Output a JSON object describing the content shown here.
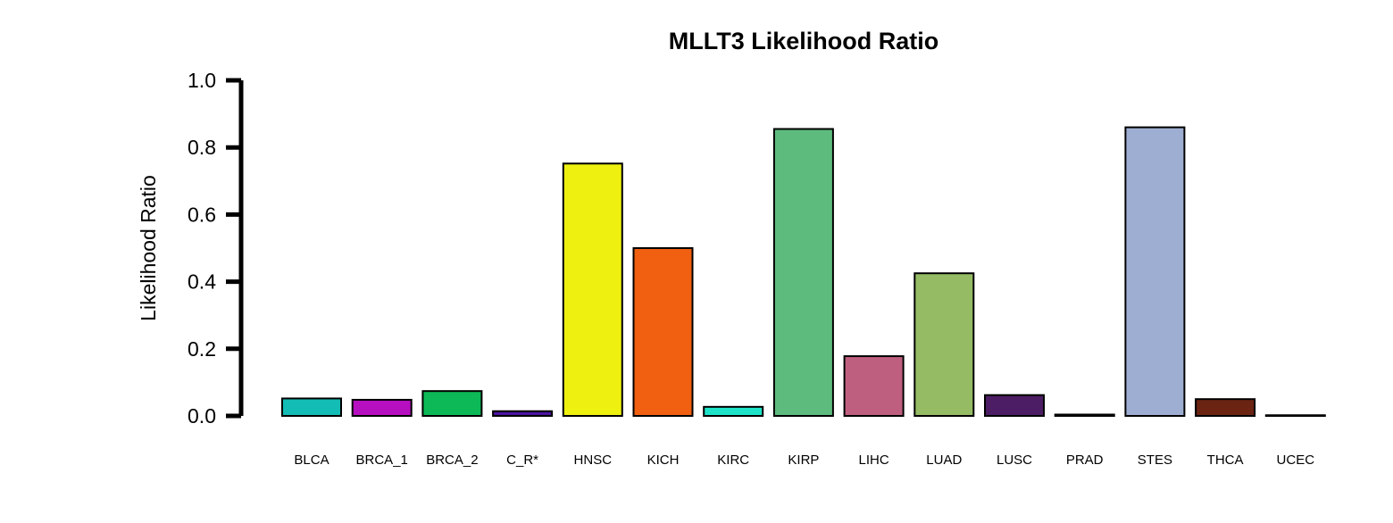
{
  "chart_data": {
    "type": "bar",
    "title": "MLLT3 Likelihood Ratio",
    "xlabel": "",
    "ylabel": "Likelihood Ratio",
    "ylim": [
      0,
      1.0
    ],
    "yticks": [
      "0.0",
      "0.2",
      "0.4",
      "0.6",
      "0.8",
      "1.0"
    ],
    "grid": false,
    "legend": "none",
    "categories": [
      "BLCA",
      "BRCA_1",
      "BRCA_2",
      "C_R*",
      "HNSC",
      "KICH",
      "KIRC",
      "KIRP",
      "LIHC",
      "LUAD",
      "LUSC",
      "PRAD",
      "STES",
      "THCA",
      "UCEC"
    ],
    "values": [
      0.052,
      0.048,
      0.074,
      0.014,
      0.752,
      0.5,
      0.027,
      0.855,
      0.178,
      0.425,
      0.062,
      0.004,
      0.86,
      0.05,
      0.002
    ],
    "colors": [
      "#13bdb5",
      "#b60fbf",
      "#0cb956",
      "#4b13a0",
      "#eef010",
      "#f06010",
      "#1ee3c8",
      "#5ebb7e",
      "#bf5f80",
      "#95bb64",
      "#4c1d64",
      "#8b1f3f",
      "#9eaed2",
      "#6b2412",
      "#3a0b1a"
    ]
  }
}
